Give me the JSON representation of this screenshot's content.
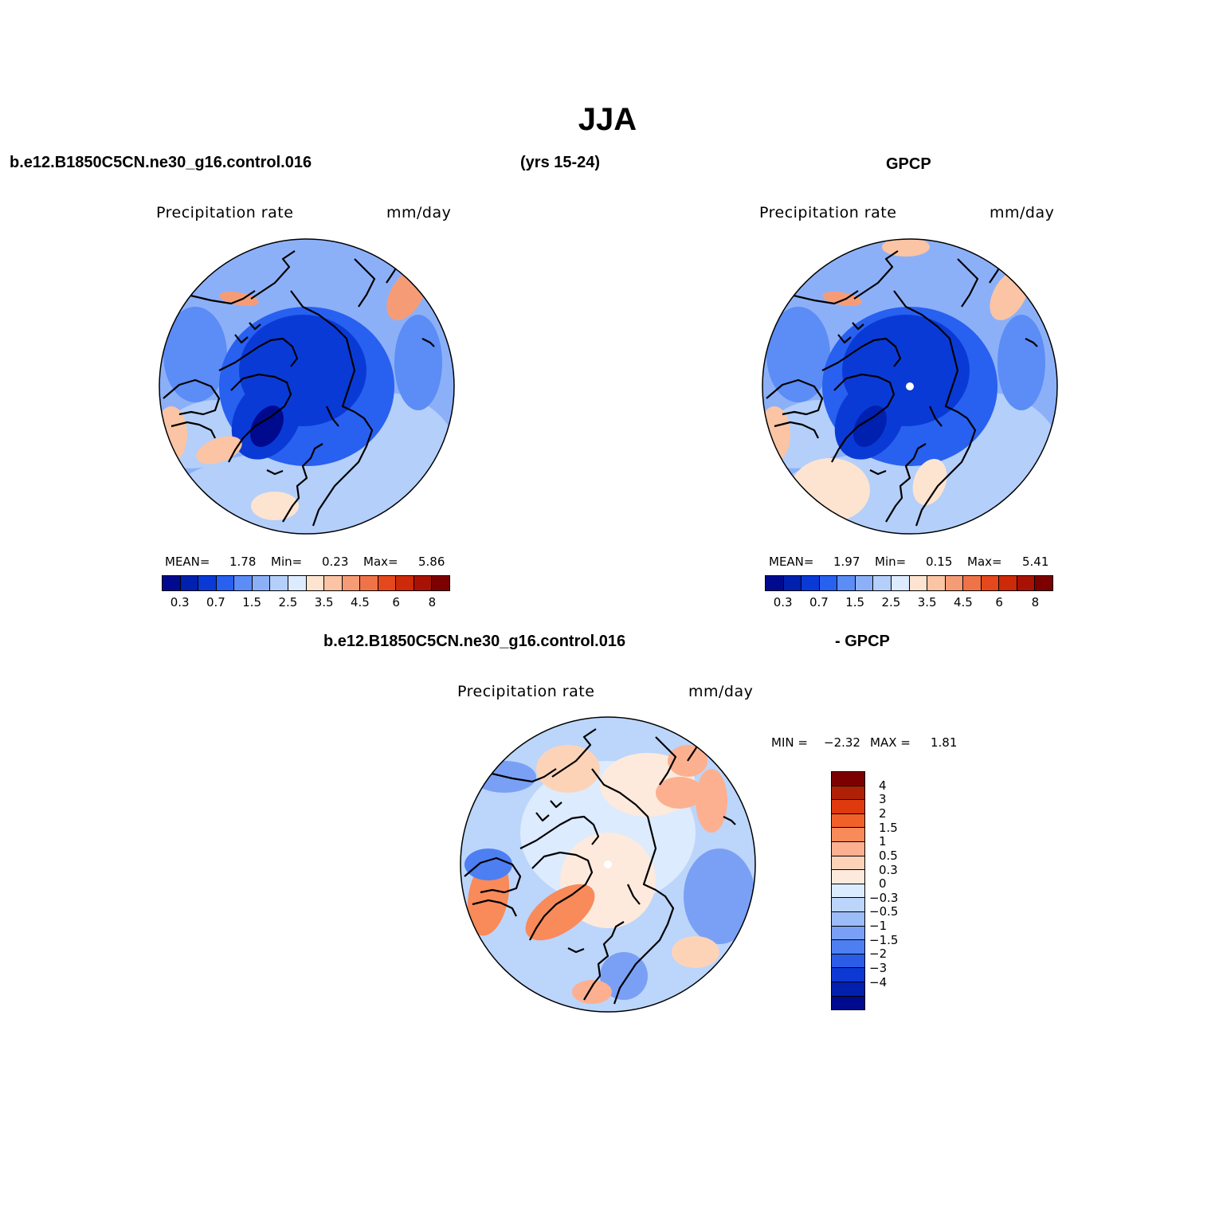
{
  "title": "JJA",
  "header": {
    "case_name": "b.e12.B1850C5CN.ne30_g16.control.016",
    "years": "(yrs 15-24)",
    "obs_name": "GPCP"
  },
  "diff_header": {
    "case_name": "b.e12.B1850C5CN.ne30_g16.control.016",
    "obs_suffix": "- GPCP"
  },
  "panels": {
    "model": {
      "variable": "Precipitation rate",
      "units": "mm/day",
      "mean_label": "MEAN=",
      "mean": "1.78",
      "min_label": "Min=",
      "min": "0.23",
      "max_label": "Max=",
      "max": "5.86"
    },
    "obs": {
      "variable": "Precipitation rate",
      "units": "mm/day",
      "mean_label": "MEAN=",
      "mean": "1.97",
      "min_label": "Min=",
      "min": "0.15",
      "max_label": "Max=",
      "max": "5.41"
    },
    "diff": {
      "variable": "Precipitation rate",
      "units": "mm/day",
      "min_label": "MIN =",
      "min": "−2.32",
      "max_label": "MAX =",
      "max": "1.81"
    }
  },
  "colorbar_abs": {
    "colors": [
      "#000a8f",
      "#0020b0",
      "#0a3ad6",
      "#2860f0",
      "#5c8cf5",
      "#8cb0f8",
      "#b4cffa",
      "#dcebfd",
      "#fde4d0",
      "#fbc4a4",
      "#f59c77",
      "#ef7348",
      "#e5481c",
      "#cc2a08",
      "#a81205",
      "#7d0000"
    ],
    "labels": [
      "0.3",
      "0.7",
      "1.5",
      "2.5",
      "3.5",
      "4.5",
      "6",
      "8"
    ]
  },
  "colorbar_diff": {
    "colors": [
      "#7d0000",
      "#b02006",
      "#de3a0d",
      "#f2602a",
      "#f98a5a",
      "#fcb090",
      "#fdd3b8",
      "#fdeadd",
      "#dcebfd",
      "#bcd5fb",
      "#9cbcf8",
      "#7aa0f5",
      "#4d7ef2",
      "#2a5ce8",
      "#0d38d4",
      "#0020ad",
      "#000a8f"
    ],
    "labels": [
      "4",
      "3",
      "2",
      "1.5",
      "1",
      "0.5",
      "0.3",
      "0",
      "−0.3",
      "−0.5",
      "−1",
      "−1.5",
      "−2",
      "−3",
      "−4"
    ]
  }
}
